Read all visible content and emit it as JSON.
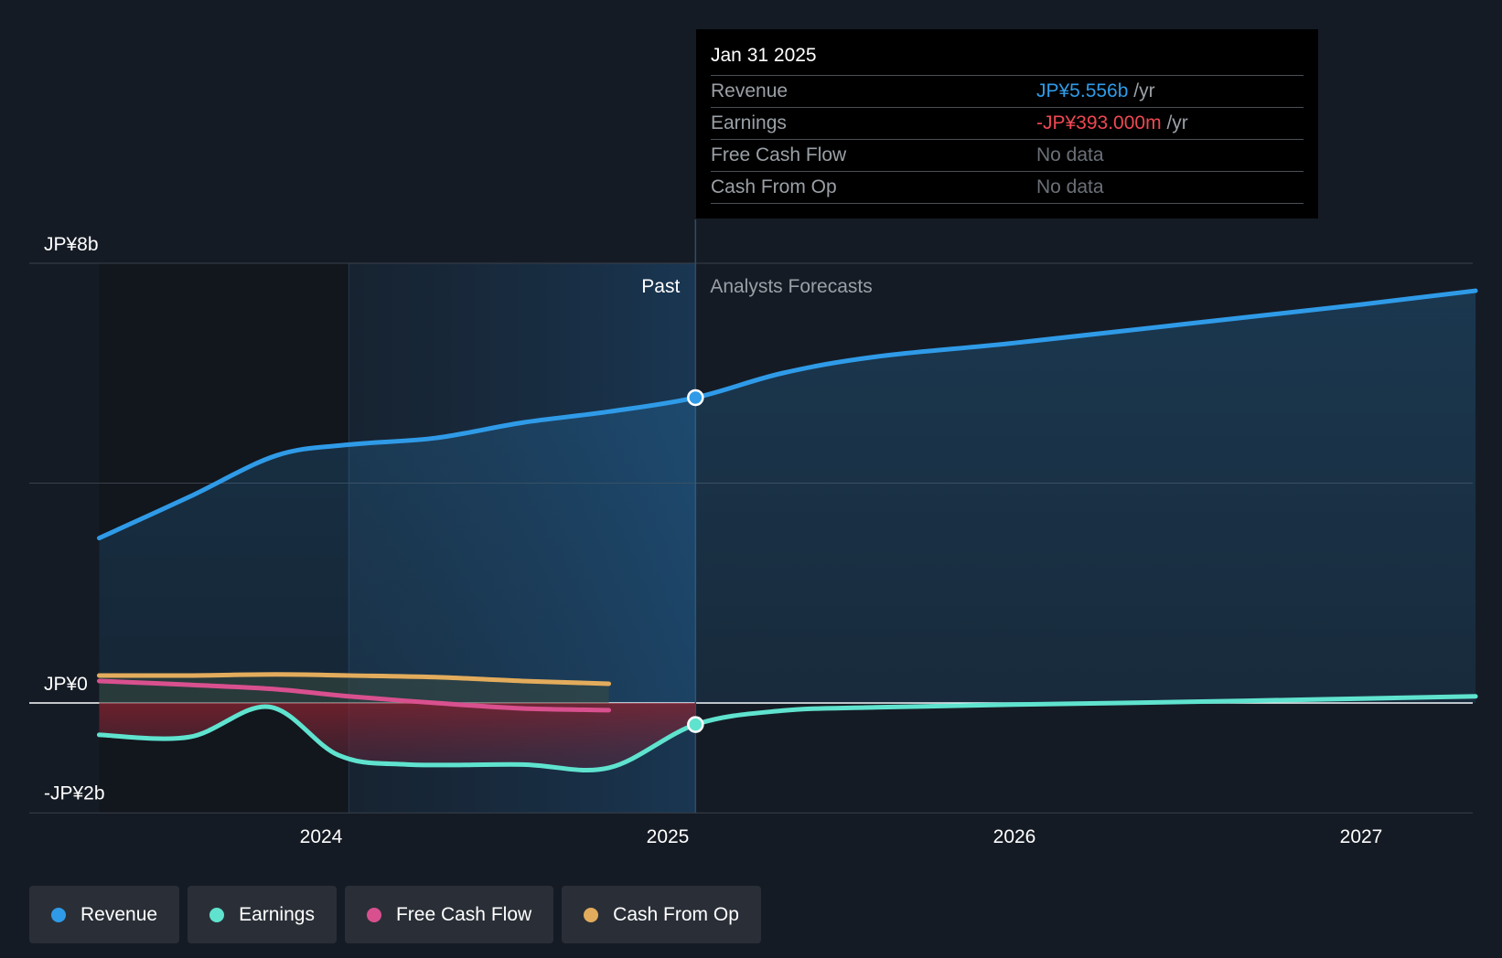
{
  "tooltip": {
    "date": "Jan 31 2025",
    "rows": [
      {
        "label": "Revenue",
        "value": "JP¥5.556b",
        "unit": "/yr",
        "color": "#2f9be8"
      },
      {
        "label": "Earnings",
        "value": "-JP¥393.000m",
        "unit": "/yr",
        "color": "#ee4852"
      },
      {
        "label": "Free Cash Flow",
        "value": "No data",
        "unit": "",
        "color": "#6b7078"
      },
      {
        "label": "Cash From Op",
        "value": "No data",
        "unit": "",
        "color": "#6b7078"
      }
    ]
  },
  "legend": [
    {
      "label": "Revenue",
      "color": "#2f9be8"
    },
    {
      "label": "Earnings",
      "color": "#5fe3cf"
    },
    {
      "label": "Free Cash Flow",
      "color": "#d9508f"
    },
    {
      "label": "Cash From Op",
      "color": "#e3ac5c"
    }
  ],
  "chart_data": {
    "type": "line",
    "ylim": [
      -2,
      8
    ],
    "y_unit": "JP¥ billions",
    "y_tick_labels": [
      {
        "value": 8,
        "label": "JP¥8b"
      },
      {
        "value": 0,
        "label": "JP¥0"
      },
      {
        "value": -2,
        "label": "-JP¥2b"
      }
    ],
    "x_tick_labels": [
      {
        "value": 2024,
        "label": "2024"
      },
      {
        "value": 2025,
        "label": "2025"
      },
      {
        "value": 2026,
        "label": "2026"
      },
      {
        "value": 2027,
        "label": "2027"
      }
    ],
    "xlim": [
      2023.2,
      2027.33
    ],
    "past_label": "Past",
    "forecast_label": "Analysts Forecasts",
    "divider_x": 2025.08,
    "past_shade_start": 2024.08,
    "grid": true,
    "series": [
      {
        "name": "Revenue",
        "color": "#2f9be8",
        "points": [
          [
            2023.36,
            3.0
          ],
          [
            2023.62,
            3.75
          ],
          [
            2023.87,
            4.5
          ],
          [
            2024.08,
            4.7
          ],
          [
            2024.33,
            4.82
          ],
          [
            2024.58,
            5.1
          ],
          [
            2024.83,
            5.3
          ],
          [
            2025.08,
            5.556
          ],
          [
            2025.33,
            6.0
          ],
          [
            2025.6,
            6.3
          ],
          [
            2026.0,
            6.55
          ],
          [
            2026.5,
            6.9
          ],
          [
            2027.0,
            7.25
          ],
          [
            2027.33,
            7.5
          ]
        ]
      },
      {
        "name": "Earnings",
        "color": "#5fe3cf",
        "points": [
          [
            2023.36,
            -0.58
          ],
          [
            2023.62,
            -0.62
          ],
          [
            2023.85,
            -0.07
          ],
          [
            2024.05,
            -0.95
          ],
          [
            2024.25,
            -1.12
          ],
          [
            2024.58,
            -1.12
          ],
          [
            2024.83,
            -1.18
          ],
          [
            2025.08,
            -0.393
          ],
          [
            2025.33,
            -0.14
          ],
          [
            2025.6,
            -0.08
          ],
          [
            2026.0,
            -0.03
          ],
          [
            2026.5,
            0.02
          ],
          [
            2027.0,
            0.08
          ],
          [
            2027.33,
            0.12
          ]
        ]
      },
      {
        "name": "Free Cash Flow",
        "color": "#d9508f",
        "points": [
          [
            2023.36,
            0.4
          ],
          [
            2023.62,
            0.33
          ],
          [
            2023.87,
            0.25
          ],
          [
            2024.08,
            0.12
          ],
          [
            2024.33,
            0.0
          ],
          [
            2024.58,
            -0.1
          ],
          [
            2024.83,
            -0.13
          ]
        ]
      },
      {
        "name": "Cash From Op",
        "color": "#e3ac5c",
        "points": [
          [
            2023.36,
            0.5
          ],
          [
            2023.62,
            0.5
          ],
          [
            2023.87,
            0.52
          ],
          [
            2024.08,
            0.5
          ],
          [
            2024.33,
            0.47
          ],
          [
            2024.58,
            0.4
          ],
          [
            2024.83,
            0.35
          ]
        ]
      }
    ],
    "highlight_x": 2025.08
  }
}
